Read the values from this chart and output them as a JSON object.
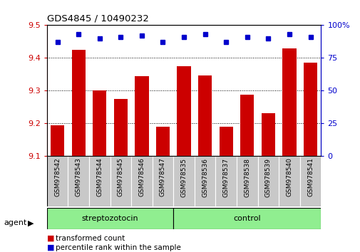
{
  "title": "GDS4845 / 10490232",
  "samples": [
    "GSM978542",
    "GSM978543",
    "GSM978544",
    "GSM978545",
    "GSM978546",
    "GSM978547",
    "GSM978535",
    "GSM978536",
    "GSM978537",
    "GSM978538",
    "GSM978539",
    "GSM978540",
    "GSM978541"
  ],
  "red_values": [
    9.195,
    9.425,
    9.3,
    9.275,
    9.345,
    9.19,
    9.375,
    9.347,
    9.19,
    9.287,
    9.232,
    9.43,
    9.385
  ],
  "blue_values": [
    87,
    93,
    90,
    91,
    92,
    87,
    91,
    93,
    87,
    91,
    90,
    93,
    91
  ],
  "ylim_left": [
    9.1,
    9.5
  ],
  "ylim_right": [
    0,
    100
  ],
  "yticks_left": [
    9.1,
    9.2,
    9.3,
    9.4,
    9.5
  ],
  "yticks_right": [
    0,
    25,
    50,
    75,
    100
  ],
  "ytick_labels_right": [
    "0",
    "25",
    "50",
    "75",
    "100%"
  ],
  "groups": [
    {
      "label": "streptozotocin",
      "start": 0,
      "end": 6,
      "color": "#90EE90"
    },
    {
      "label": "control",
      "start": 6,
      "end": 13,
      "color": "#90EE90"
    }
  ],
  "bar_color": "#CC0000",
  "dot_color": "#0000CC",
  "bar_bottom": 9.1,
  "bar_width": 0.65,
  "legend_items": [
    {
      "label": "transformed count",
      "color": "#CC0000"
    },
    {
      "label": "percentile rank within the sample",
      "color": "#0000CC"
    }
  ],
  "bg_color": "#ffffff",
  "tick_label_bg": "#C8C8C8"
}
